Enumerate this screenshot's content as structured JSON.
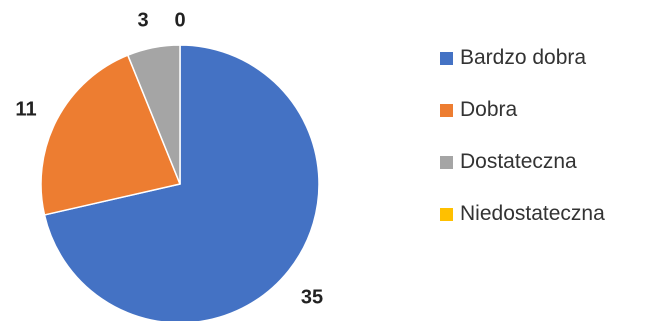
{
  "chart_data": {
    "type": "pie",
    "categories": [
      "Bardzo dobra",
      "Dobra",
      "Dostateczna",
      "Niedostateczna"
    ],
    "values": [
      35,
      11,
      3,
      0
    ],
    "colors": [
      "#4472C4",
      "#ED7D31",
      "#A5A5A5",
      "#FFC000"
    ],
    "data_labels": [
      "35",
      "11",
      "3",
      "0"
    ],
    "legend_position": "right",
    "title": "",
    "start_angle": "12 o'clock, clockwise"
  }
}
